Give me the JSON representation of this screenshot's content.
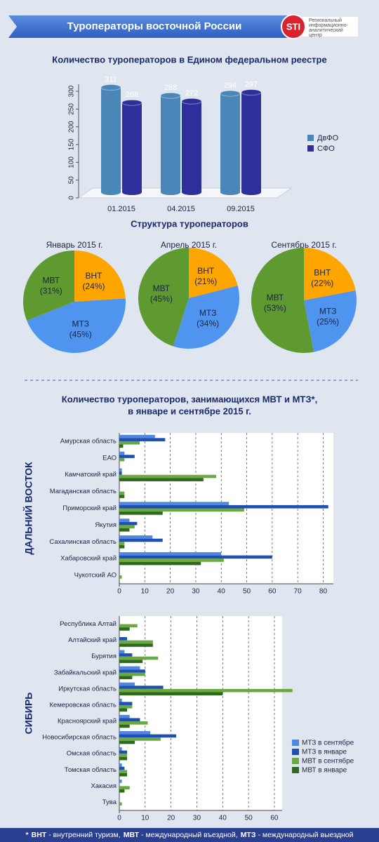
{
  "header": {
    "title": "Туроператоры восточной России",
    "logo": "STI",
    "org": [
      "Региональный",
      "информационно-",
      "аналитический",
      "центр"
    ]
  },
  "chart_data": [
    {
      "type": "bar3d",
      "title": "Количество туроператоров в Едином федеральном реестре",
      "categories": [
        "01.2015",
        "04.2015",
        "09.2015"
      ],
      "series": [
        {
          "name": "ДвФО",
          "color": "#4a86b8",
          "values": [
            311,
            288,
            294
          ]
        },
        {
          "name": "СФО",
          "color": "#2f2f9c",
          "values": [
            268,
            272,
            297
          ]
        }
      ],
      "ylim": [
        0,
        320
      ],
      "yticks": [
        0,
        50,
        100,
        150,
        200,
        250,
        300
      ],
      "legend": "right"
    },
    {
      "type": "pie",
      "title": "Структура туроператоров",
      "categories": [
        "ВНТ",
        "МТЗ",
        "МВТ"
      ],
      "colors": [
        "#ffa500",
        "#4f94ef",
        "#5e9a30"
      ],
      "pies": [
        {
          "title": "Январь 2015 г.",
          "values": [
            24,
            45,
            31
          ],
          "value_labels": [
            "(24%)",
            "(45%)",
            "(31%)"
          ]
        },
        {
          "title": "Апрель 2015 г.",
          "values": [
            21,
            34,
            45
          ],
          "value_labels": [
            "(21%)",
            "(34%)",
            "(45%)"
          ]
        },
        {
          "title": "Сентябрь 2015 г.",
          "values": [
            22,
            25,
            53
          ],
          "value_labels": [
            "(22%)",
            "(25%)",
            "(53%)"
          ]
        }
      ]
    },
    {
      "type": "hbar",
      "title": [
        "Количество туроператоров, занимающихся МВТ и МТЗ*,",
        "в январе и сентябре 2015 г."
      ],
      "ylabel": "ДАЛЬНИЙ ВОСТОК",
      "categories": [
        "Амурская область",
        "ЕАО",
        "Камчатский край",
        "Магаданская область",
        "Приморский край",
        "Якутия",
        "Сахалинская область",
        "Хабаровский край",
        "Чукотский АО"
      ],
      "series": [
        {
          "color": "#4f86e0",
          "values": [
            14,
            2,
            1,
            0,
            43,
            4,
            13,
            40,
            0
          ]
        },
        {
          "color": "#1f4fb0",
          "values": [
            18,
            6,
            1,
            0,
            82,
            7,
            17,
            60,
            0
          ]
        },
        {
          "color": "#6aa844",
          "values": [
            8,
            2,
            38,
            2,
            49,
            6,
            2,
            41,
            1
          ]
        },
        {
          "color": "#2e6a1e",
          "values": [
            1.5,
            0,
            33,
            2,
            17,
            4,
            2,
            32,
            0
          ]
        }
      ],
      "xlim": [
        0,
        84
      ],
      "xticks": [
        0,
        10,
        20,
        30,
        40,
        50,
        60,
        70,
        80
      ],
      "grid": true
    },
    {
      "type": "hbar",
      "ylabel": "СИБИРЬ",
      "categories": [
        "Республика Алтай",
        "Алтайский край",
        "Бурятия",
        "Забайкальский край",
        "Иркутская область",
        "Кемеровская область",
        "Красноярский край",
        "Новосибирская область",
        "Омская область",
        "Томская область",
        "Хакасия",
        "Тува"
      ],
      "series": [
        {
          "name": "МТЗ в сентябре",
          "color": "#4f86e0",
          "values": [
            0,
            0,
            2,
            8,
            6,
            1,
            4,
            12,
            1,
            1,
            1,
            0
          ]
        },
        {
          "name": "МТЗ в январе",
          "color": "#1f4fb0",
          "values": [
            0,
            3,
            5,
            10,
            17,
            5,
            8,
            22,
            3,
            2,
            0,
            0
          ]
        },
        {
          "name": "МВТ в сентябре",
          "color": "#6aa844",
          "values": [
            7,
            13,
            15,
            10,
            67,
            5,
            11,
            16,
            3,
            3,
            4,
            1
          ]
        },
        {
          "name": "МВТ в январе",
          "color": "#2e6a1e",
          "values": [
            4,
            13,
            9,
            5,
            40,
            3,
            4,
            6,
            3,
            3,
            2,
            0
          ]
        }
      ],
      "xlim": [
        0,
        63
      ],
      "xticks": [
        0,
        10,
        20,
        30,
        40,
        50,
        60
      ],
      "grid": true,
      "legend": "lower right"
    }
  ],
  "footnote": {
    "mark": "*",
    "items": [
      {
        "term": "ВНТ",
        "text": "- внутренний туризм,"
      },
      {
        "term": "МВТ",
        "text": "- международный въездной,"
      },
      {
        "term": "МТЗ",
        "text": "- международный выездной"
      }
    ]
  }
}
